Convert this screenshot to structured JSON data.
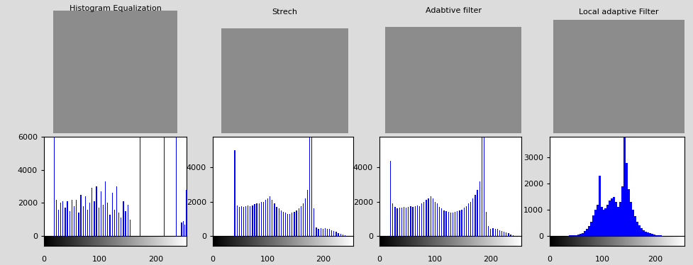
{
  "chart_data": [
    {
      "type": "bar",
      "title": "Histogram Equalization",
      "color": "#0000ff",
      "x": [
        18,
        22,
        26,
        30,
        34,
        38,
        42,
        46,
        50,
        54,
        58,
        62,
        66,
        70,
        74,
        78,
        82,
        86,
        90,
        94,
        98,
        102,
        106,
        110,
        114,
        118,
        122,
        126,
        130,
        134,
        138,
        142,
        146,
        150,
        154,
        172,
        215,
        237,
        246,
        249,
        252,
        255
      ],
      "values": [
        6000,
        2200,
        1600,
        2000,
        2100,
        1700,
        2100,
        1500,
        2200,
        1800,
        2200,
        1400,
        2500,
        1800,
        2400,
        1600,
        2000,
        2900,
        2100,
        3000,
        1700,
        2700,
        1900,
        3300,
        2000,
        1300,
        2600,
        1600,
        3000,
        1400,
        1100,
        2100,
        1500,
        1900,
        1000,
        6000,
        6000,
        6000,
        800,
        900,
        700,
        2800
      ],
      "xlim": [
        0,
        255
      ],
      "xticks": [
        0,
        100,
        200
      ],
      "ylim": [
        0,
        6000
      ],
      "yticks": [
        0,
        2000,
        4000,
        6000
      ]
    },
    {
      "type": "bar",
      "title": "Strech",
      "color": "#0000ff",
      "x": [
        40,
        44,
        48,
        52,
        56,
        60,
        64,
        68,
        72,
        76,
        80,
        84,
        88,
        92,
        96,
        100,
        104,
        108,
        112,
        116,
        120,
        124,
        128,
        132,
        136,
        140,
        144,
        148,
        152,
        156,
        160,
        164,
        168,
        172,
        176,
        180,
        184,
        188,
        192,
        196,
        200,
        204,
        208,
        212,
        216,
        220,
        224,
        228,
        232,
        236,
        240,
        244,
        248
      ],
      "values": [
        5000,
        1800,
        1700,
        1750,
        1700,
        1750,
        1800,
        1750,
        1800,
        1850,
        1900,
        1900,
        2000,
        2000,
        2100,
        2200,
        2300,
        2100,
        1900,
        1700,
        1600,
        1500,
        1400,
        1350,
        1300,
        1300,
        1350,
        1400,
        1500,
        1600,
        1750,
        1900,
        2200,
        2700,
        5800,
        5800,
        1600,
        500,
        400,
        450,
        420,
        450,
        430,
        400,
        350,
        300,
        250,
        180,
        120,
        80,
        40,
        20,
        10
      ],
      "xlim": [
        0,
        255
      ],
      "xticks": [
        0,
        100,
        200
      ],
      "ylim": [
        0,
        5800
      ],
      "yticks": [
        0,
        2000,
        4000
      ]
    },
    {
      "type": "bar",
      "title": "Adabtive filter",
      "color": "#0000ff",
      "x": [
        20,
        24,
        28,
        32,
        36,
        40,
        44,
        48,
        52,
        56,
        60,
        64,
        68,
        72,
        76,
        80,
        84,
        88,
        92,
        96,
        100,
        104,
        108,
        112,
        116,
        120,
        124,
        128,
        132,
        136,
        140,
        144,
        148,
        152,
        156,
        160,
        164,
        168,
        172,
        176,
        180,
        184,
        188,
        192,
        196,
        200,
        204,
        208,
        212,
        216,
        220,
        224,
        228,
        232,
        236,
        240
      ],
      "values": [
        4400,
        1900,
        1700,
        1600,
        1650,
        1650,
        1700,
        1650,
        1700,
        1750,
        1700,
        1750,
        1800,
        1750,
        1900,
        2000,
        2100,
        2200,
        2300,
        2200,
        2000,
        1900,
        1700,
        1600,
        1500,
        1450,
        1400,
        1350,
        1350,
        1400,
        1450,
        1500,
        1550,
        1650,
        1750,
        1900,
        2000,
        2200,
        2400,
        2700,
        3200,
        5800,
        5800,
        1400,
        600,
        400,
        450,
        420,
        400,
        350,
        300,
        250,
        200,
        150,
        100,
        50
      ],
      "xlim": [
        0,
        255
      ],
      "xticks": [
        0,
        100,
        200
      ],
      "ylim": [
        0,
        5800
      ],
      "yticks": [
        0,
        2000,
        4000
      ]
    },
    {
      "type": "area",
      "title": "Local adaptive Filter",
      "color": "#0000ff",
      "x": [
        30,
        34,
        38,
        42,
        46,
        50,
        54,
        58,
        62,
        66,
        70,
        74,
        78,
        82,
        86,
        90,
        94,
        98,
        102,
        106,
        110,
        114,
        118,
        122,
        126,
        130,
        134,
        138,
        142,
        146,
        150,
        154,
        158,
        162,
        166,
        170,
        174,
        178,
        182,
        186,
        190,
        194,
        198,
        202,
        206,
        210,
        214,
        218,
        222,
        226,
        230
      ],
      "values": [
        5,
        10,
        15,
        20,
        30,
        40,
        60,
        80,
        120,
        180,
        260,
        380,
        550,
        800,
        1000,
        1200,
        2300,
        1100,
        1000,
        1050,
        1200,
        1350,
        1450,
        1500,
        1300,
        1100,
        1300,
        1900,
        3800,
        2800,
        1800,
        1300,
        1000,
        750,
        550,
        420,
        300,
        230,
        170,
        130,
        100,
        70,
        50,
        35,
        25,
        15,
        10,
        8,
        5,
        3,
        2
      ],
      "xlim": [
        0,
        255
      ],
      "xticks": [
        0,
        100,
        200
      ],
      "ylim": [
        0,
        3800
      ],
      "yticks": [
        0,
        1000,
        2000,
        3000
      ]
    }
  ]
}
